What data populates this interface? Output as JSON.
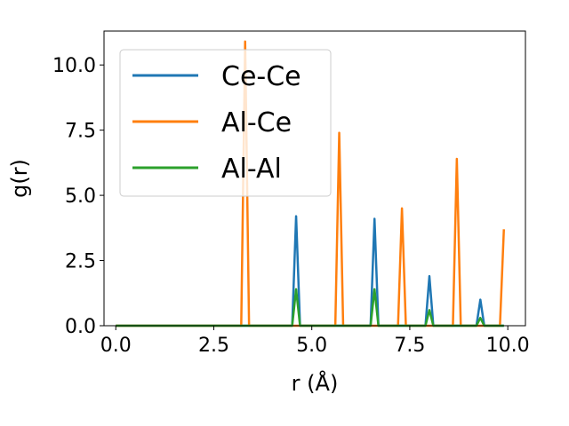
{
  "chart_data": {
    "type": "line",
    "title": "",
    "xlabel": "r (Å)",
    "ylabel": "g(r)",
    "xlim": [
      -0.3,
      10.45
    ],
    "ylim": [
      0,
      11.3
    ],
    "xticks": [
      0.0,
      2.5,
      5.0,
      7.5,
      10.0
    ],
    "xtick_labels": [
      "0.0",
      "2.5",
      "5.0",
      "7.5",
      "10.0"
    ],
    "yticks": [
      0.0,
      2.5,
      5.0,
      7.5,
      10.0
    ],
    "ytick_labels": [
      "0.0",
      "2.5",
      "5.0",
      "7.5",
      "10.0"
    ],
    "grid": false,
    "legend_position": "top-left",
    "series": [
      {
        "name": "Ce-Ce",
        "color": "#1f77b4",
        "x": [
          0.0,
          4.5,
          4.6,
          4.7,
          6.5,
          6.6,
          6.7,
          7.9,
          8.0,
          8.1,
          9.2,
          9.3,
          9.4,
          9.9
        ],
        "y": [
          0.0,
          0.0,
          4.2,
          0.0,
          0.0,
          4.1,
          0.0,
          0.0,
          1.9,
          0.0,
          0.0,
          1.0,
          0.0,
          0.0
        ]
      },
      {
        "name": "Al-Ce",
        "color": "#ff7f0e",
        "x": [
          0.0,
          3.2,
          3.3,
          3.4,
          5.6,
          5.7,
          5.8,
          7.2,
          7.3,
          7.4,
          8.6,
          8.7,
          8.8,
          9.8,
          9.9
        ],
        "y": [
          0.0,
          0.0,
          10.9,
          0.0,
          0.0,
          7.4,
          0.0,
          0.0,
          4.5,
          0.0,
          0.0,
          6.4,
          0.0,
          0.0,
          3.7
        ]
      },
      {
        "name": "Al-Al",
        "color": "#2ca02c",
        "x": [
          0.0,
          4.5,
          4.6,
          4.7,
          6.5,
          6.6,
          6.7,
          7.9,
          8.0,
          8.1,
          9.2,
          9.3,
          9.4,
          9.9
        ],
        "y": [
          0.0,
          0.0,
          1.4,
          0.0,
          0.0,
          1.4,
          0.0,
          0.0,
          0.6,
          0.0,
          0.0,
          0.3,
          0.0,
          0.0
        ]
      }
    ]
  }
}
